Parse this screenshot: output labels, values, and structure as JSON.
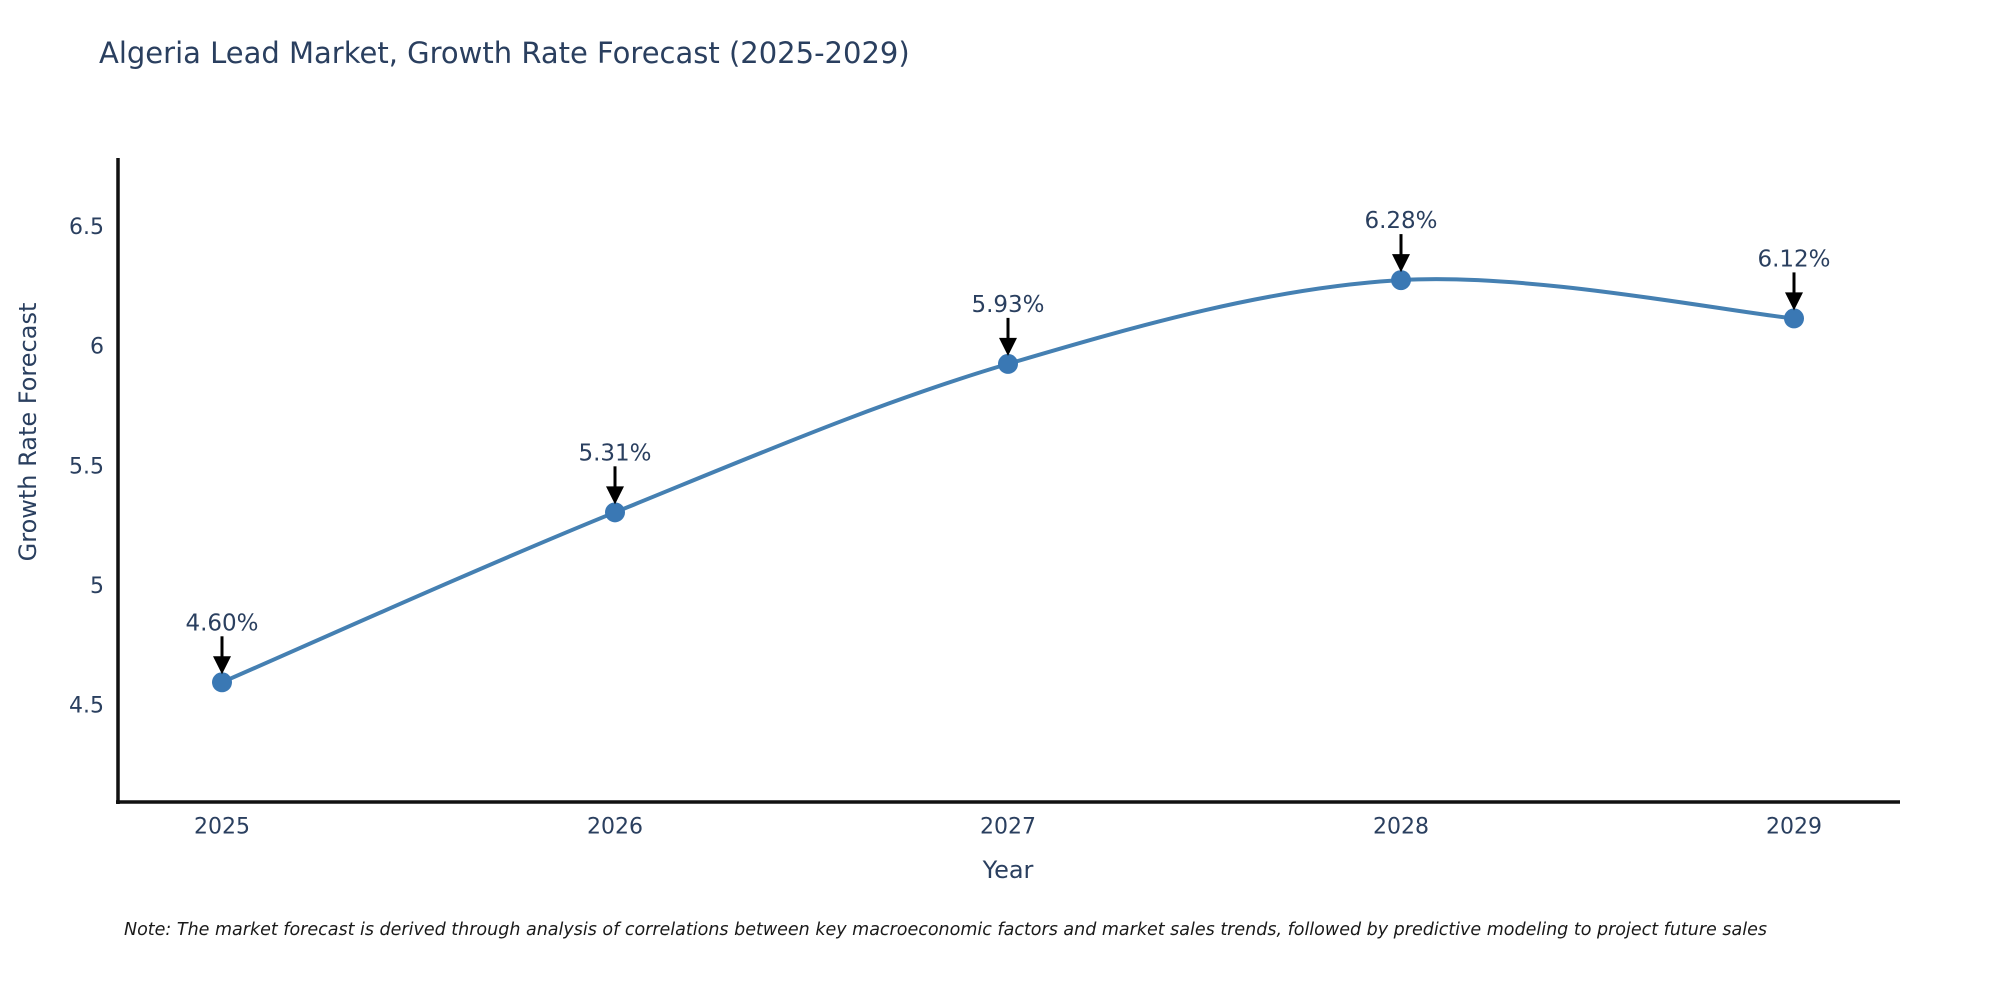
{
  "note": "Note: The market forecast is derived through analysis of correlations between key macroeconomic factors and market sales trends, followed by predictive modeling to project future sales",
  "chart_data": {
    "type": "line",
    "title": "Algeria Lead Market, Growth Rate Forecast (2025-2029)",
    "categories": [
      "2025",
      "2026",
      "2027",
      "2028",
      "2029"
    ],
    "x": [
      2025,
      2026,
      2027,
      2028,
      2029
    ],
    "series": [
      {
        "name": "Growth Rate Forecast",
        "values": [
          4.6,
          5.31,
          5.93,
          6.28,
          6.12
        ]
      }
    ],
    "point_labels": [
      "4.60%",
      "5.31%",
      "5.93%",
      "6.28%",
      "6.12%"
    ],
    "xlabel": "Year",
    "ylabel": "Growth Rate Forecast",
    "ylim": [
      4.1,
      6.79
    ],
    "yticks": [
      4.5,
      5,
      5.5,
      6,
      6.5
    ],
    "ytick_labels": [
      "4.5",
      "5",
      "5.5",
      "6",
      "6.5"
    ],
    "grid": false,
    "legend_position": "none",
    "line_shape": "spline",
    "marker": "circle",
    "annotation_style": "label-with-down-arrow",
    "colors": {
      "line": "#4580b2",
      "marker": "#3a78b4",
      "axis": "#111111",
      "text": "#2a3f5f",
      "annotation_text": "#2a3f5f",
      "annotation_arrow": "#000000",
      "background": "#ffffff"
    }
  }
}
